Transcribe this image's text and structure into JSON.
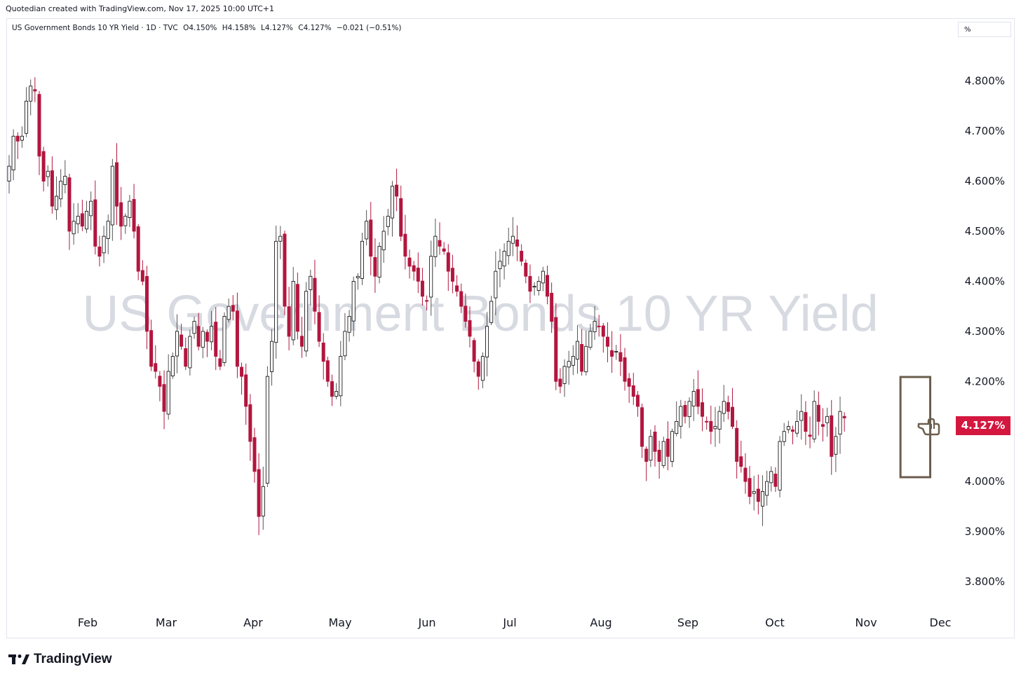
{
  "header": {
    "credit": "Quotedian created with TradingView.com, Nov 17, 2025 10:00 UTC+1"
  },
  "legend": {
    "symbol": "US Government Bonds 10 YR Yield · 1D · TVC",
    "open": "O4.150%",
    "high": "H4.158%",
    "low": "L4.127%",
    "close": "C4.127%",
    "change": "−0.021 (−0.51%)"
  },
  "unit_box": "%",
  "watermark": "US Government Bonds 10 YR Yield",
  "current_price_label": "4.127%",
  "brand": "TradingView",
  "colors": {
    "up": "#ffffff",
    "up_border": "#000000",
    "down": "#b2163e",
    "wick": "#555555",
    "highlight": "#6b5d4d",
    "price": "#d3173f"
  },
  "icons": {
    "pointer": "pointing-hand-icon",
    "logo": "tradingview-logo-icon"
  },
  "chart_data": {
    "type": "candlestick",
    "y_ticks": [
      "4.800%",
      "4.700%",
      "4.600%",
      "4.500%",
      "4.400%",
      "4.300%",
      "4.200%",
      "4.100%",
      "4.000%",
      "3.900%",
      "3.800%"
    ],
    "ylim": [
      3.73,
      4.92
    ],
    "x_ticks": [
      "Feb",
      "Mar",
      "Apr",
      "May",
      "Jun",
      "Jul",
      "Aug",
      "Sep",
      "Oct",
      "Nov",
      "Dec"
    ],
    "highlight": {
      "from_candle": 208,
      "to_candle": 211,
      "label": ""
    },
    "close_series": [
      4.63,
      4.69,
      4.68,
      4.69,
      4.76,
      4.79,
      4.78,
      4.65,
      4.6,
      4.62,
      4.55,
      4.57,
      4.6,
      4.61,
      4.5,
      4.52,
      4.53,
      4.51,
      4.54,
      4.56,
      4.47,
      4.45,
      4.49,
      4.52,
      4.63,
      4.55,
      4.51,
      4.53,
      4.56,
      4.5,
      4.42,
      4.4,
      4.3,
      4.23,
      4.22,
      4.19,
      4.14,
      4.22,
      4.25,
      4.3,
      4.27,
      4.23,
      4.29,
      4.32,
      4.27,
      4.3,
      4.28,
      4.31,
      4.25,
      4.23,
      4.33,
      4.35,
      4.34,
      4.23,
      4.21,
      4.15,
      4.08,
      4.02,
      3.93,
      3.99,
      4.21,
      4.28,
      4.48,
      4.49,
      4.35,
      4.29,
      4.4,
      4.3,
      4.27,
      4.38,
      4.41,
      4.34,
      4.28,
      4.24,
      4.2,
      4.17,
      4.18,
      4.25,
      4.3,
      4.33,
      4.4,
      4.41,
      4.48,
      4.52,
      4.45,
      4.41,
      4.47,
      4.5,
      4.53,
      4.59,
      4.57,
      4.49,
      4.45,
      4.43,
      4.42,
      4.4,
      4.37,
      4.36,
      4.45,
      4.49,
      4.47,
      4.46,
      4.42,
      4.4,
      4.38,
      4.35,
      4.32,
      4.29,
      4.24,
      4.21,
      4.25,
      4.31,
      4.36,
      4.42,
      4.44,
      4.46,
      4.48,
      4.49,
      4.47,
      4.44,
      4.41,
      4.38,
      4.39,
      4.4,
      4.42,
      4.37,
      4.32,
      4.2,
      4.19,
      4.23,
      4.24,
      4.25,
      4.28,
      4.22,
      4.27,
      4.3,
      4.32,
      4.31,
      4.29,
      4.27,
      4.25,
      4.26,
      4.24,
      4.2,
      4.19,
      4.17,
      4.15,
      4.07,
      4.04,
      4.09,
      4.06,
      4.04,
      4.08,
      4.05,
      4.1,
      4.12,
      4.15,
      4.13,
      4.16,
      4.18,
      4.15,
      4.13,
      4.12,
      4.1,
      4.11,
      4.14,
      4.16,
      4.14,
      4.11,
      4.04,
      4.03,
      4.0,
      3.97,
      3.98,
      3.96,
      3.98,
      4.0,
      4.02,
      3.99,
      4.08,
      4.1,
      4.11,
      4.1,
      4.12,
      4.14,
      4.1,
      4.09,
      4.16,
      4.12,
      4.11,
      4.13,
      4.05,
      4.09,
      4.14,
      4.127
    ]
  }
}
